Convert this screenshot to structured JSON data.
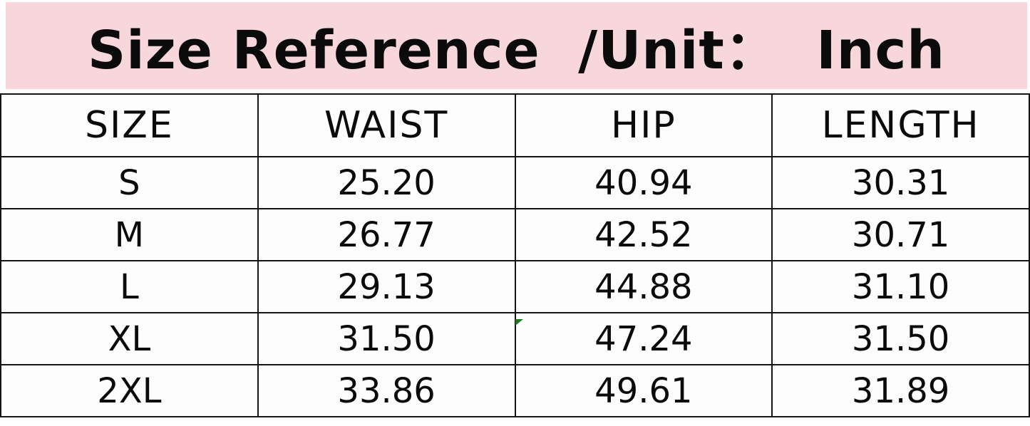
{
  "title": {
    "text": "Size Reference  /Unit：  Inch",
    "background_color": "#f8d7dc",
    "text_color": "#0b0b0b"
  },
  "chart_data": {
    "type": "table",
    "title": "Size Reference /Unit: Inch",
    "unit": "Inch",
    "columns": [
      "SIZE",
      "WAIST",
      "HIP",
      "LENGTH"
    ],
    "rows": [
      [
        "S",
        "25.20",
        "40.94",
        "30.31"
      ],
      [
        "M",
        "26.77",
        "42.52",
        "30.71"
      ],
      [
        "L",
        "29.13",
        "44.88",
        "31.10"
      ],
      [
        "XL",
        "31.50",
        "47.24",
        "31.50"
      ],
      [
        "2XL",
        "33.86",
        "49.61",
        "31.89"
      ]
    ]
  },
  "decorations": {
    "border_color": "#141414",
    "green_marker_color": "#1f7a1f",
    "cell_background": "#fdfdfd"
  }
}
